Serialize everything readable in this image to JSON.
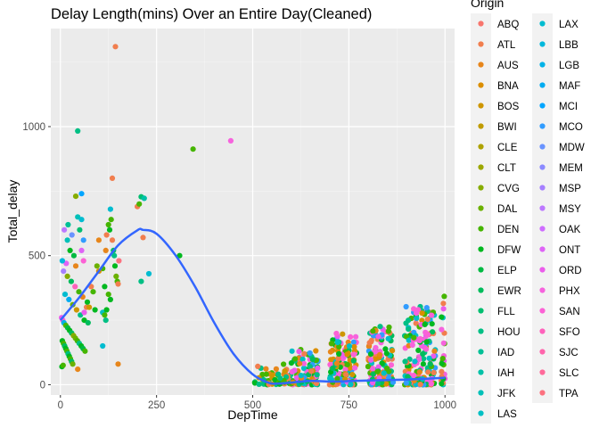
{
  "chart_data": {
    "type": "scatter",
    "title": "Delay Length(mins) Over an Entire Day(Cleaned)",
    "xlabel": "DepTime",
    "ylabel": "Total_delay",
    "xlim": [
      -25,
      1025
    ],
    "ylim": [
      -40,
      1380
    ],
    "x_ticks": [
      0,
      250,
      500,
      750,
      1000
    ],
    "x_tick_labels": [
      "0",
      "250",
      "500",
      "750",
      "1000"
    ],
    "y_ticks": [
      0,
      500,
      1000
    ],
    "y_tick_labels": [
      "0",
      "500",
      "1000"
    ],
    "x_minor_ticks": [
      125,
      375,
      625,
      875
    ],
    "y_minor_ticks": [
      250,
      750,
      1250
    ],
    "grid": true,
    "background": "#ebebeb",
    "legend": {
      "title": "Origin",
      "placement": "right",
      "columns": 2,
      "entries": [
        {
          "label": "ABQ",
          "color": "#F8766D"
        },
        {
          "label": "ATL",
          "color": "#F17E4E"
        },
        {
          "label": "AUS",
          "color": "#E7861B"
        },
        {
          "label": "BNA",
          "color": "#DB8E00"
        },
        {
          "label": "BOS",
          "color": "#CE9600"
        },
        {
          "label": "BWI",
          "color": "#C09B00"
        },
        {
          "label": "CLE",
          "color": "#AEA200"
        },
        {
          "label": "CLT",
          "color": "#9CA700"
        },
        {
          "label": "CVG",
          "color": "#86AC00"
        },
        {
          "label": "DAL",
          "color": "#6BB100"
        },
        {
          "label": "DEN",
          "color": "#45B500"
        },
        {
          "label": "DFW",
          "color": "#00B81F"
        },
        {
          "label": "ELP",
          "color": "#00BA42"
        },
        {
          "label": "EWR",
          "color": "#00BC5C"
        },
        {
          "label": "FLL",
          "color": "#00BE70"
        },
        {
          "label": "HOU",
          "color": "#00BF84"
        },
        {
          "label": "IAD",
          "color": "#00C096"
        },
        {
          "label": "IAH",
          "color": "#00C1A7"
        },
        {
          "label": "JFK",
          "color": "#00C0B8"
        },
        {
          "label": "LAS",
          "color": "#00BFC4"
        },
        {
          "label": "LAX",
          "color": "#00BCD0"
        },
        {
          "label": "LBB",
          "color": "#00B8DC"
        },
        {
          "label": "LGB",
          "color": "#00B2E7"
        },
        {
          "label": "MAF",
          "color": "#00ACF1"
        },
        {
          "label": "MCI",
          "color": "#00A5FF"
        },
        {
          "label": "MCO",
          "color": "#319CFF"
        },
        {
          "label": "MDW",
          "color": "#6993FF"
        },
        {
          "label": "MEM",
          "color": "#8B8AFF"
        },
        {
          "label": "MSP",
          "color": "#A680FF"
        },
        {
          "label": "MSY",
          "color": "#BC78FF"
        },
        {
          "label": "OAK",
          "color": "#CE6DFF"
        },
        {
          "label": "ONT",
          "color": "#DE64F6"
        },
        {
          "label": "ORD",
          "color": "#EB5CEB"
        },
        {
          "label": "PHX",
          "color": "#F663DD"
        },
        {
          "label": "SAN",
          "color": "#FC61D5"
        },
        {
          "label": "SFO",
          "color": "#FF62BC"
        },
        {
          "label": "SJC",
          "color": "#FF65AC"
        },
        {
          "label": "SLC",
          "color": "#FF6A9A"
        },
        {
          "label": "TPA",
          "color": "#FC717F"
        }
      ]
    },
    "points": [
      [
        143,
        1310,
        "ATL"
      ],
      [
        45,
        983,
        "HOU"
      ],
      [
        345,
        913,
        "DEN"
      ],
      [
        443,
        945,
        "PHX"
      ],
      [
        135,
        800,
        "ATL"
      ],
      [
        200,
        690,
        "ATL"
      ],
      [
        205,
        700,
        "DEN"
      ],
      [
        210,
        728,
        "FLL"
      ],
      [
        218,
        722,
        "IAH"
      ],
      [
        55,
        740,
        "MCI"
      ],
      [
        40,
        730,
        "CVG"
      ],
      [
        10,
        600,
        "MSY"
      ],
      [
        20,
        620,
        "IAD"
      ],
      [
        30,
        580,
        "MDW"
      ],
      [
        45,
        650,
        "JFK"
      ],
      [
        55,
        640,
        "LAX"
      ],
      [
        50,
        600,
        "FLL"
      ],
      [
        60,
        560,
        "MCO"
      ],
      [
        35,
        500,
        "ELP"
      ],
      [
        25,
        520,
        "DFW"
      ],
      [
        15,
        470,
        "ONT"
      ],
      [
        5,
        480,
        "LBB"
      ],
      [
        8,
        440,
        "MSP"
      ],
      [
        18,
        420,
        "CVG"
      ],
      [
        28,
        400,
        "EWR"
      ],
      [
        38,
        380,
        "SFO"
      ],
      [
        48,
        360,
        "DEN"
      ],
      [
        58,
        340,
        "AUS"
      ],
      [
        68,
        300,
        "ATL"
      ],
      [
        12,
        350,
        "LAX"
      ],
      [
        22,
        330,
        "MAF"
      ],
      [
        32,
        310,
        "DAL"
      ],
      [
        42,
        290,
        "BOS"
      ],
      [
        52,
        270,
        "HOU"
      ],
      [
        62,
        250,
        "DFW"
      ],
      [
        72,
        240,
        "EWR"
      ],
      [
        3,
        260,
        "ORD"
      ],
      [
        6,
        250,
        "SAN"
      ],
      [
        9,
        240,
        "LGB"
      ],
      [
        14,
        230,
        "DEN"
      ],
      [
        19,
        220,
        "ELP"
      ],
      [
        24,
        210,
        "DFW"
      ],
      [
        29,
        200,
        "EWR"
      ],
      [
        34,
        190,
        "CVG"
      ],
      [
        39,
        180,
        "DAL"
      ],
      [
        44,
        170,
        "DEN"
      ],
      [
        49,
        160,
        "HOU"
      ],
      [
        54,
        150,
        "DFW"
      ],
      [
        59,
        140,
        "ELP"
      ],
      [
        64,
        130,
        "DEN"
      ],
      [
        5,
        170,
        "DFW"
      ],
      [
        8,
        160,
        "DEN"
      ],
      [
        11,
        150,
        "EWR"
      ],
      [
        14,
        140,
        "DFW"
      ],
      [
        17,
        130,
        "DEN"
      ],
      [
        20,
        120,
        "HOU"
      ],
      [
        23,
        110,
        "DFW"
      ],
      [
        26,
        100,
        "DEN"
      ],
      [
        29,
        90,
        "EWR"
      ],
      [
        32,
        80,
        "DAL"
      ],
      [
        4,
        70,
        "DFW"
      ],
      [
        7,
        75,
        "DEN"
      ],
      [
        45,
        60,
        "AUS"
      ],
      [
        70,
        320,
        "DFW"
      ],
      [
        75,
        300,
        "BOS"
      ],
      [
        80,
        380,
        "ATL"
      ],
      [
        100,
        560,
        "AUS"
      ],
      [
        110,
        450,
        "DEN"
      ],
      [
        115,
        380,
        "DFW"
      ],
      [
        118,
        520,
        "AUS"
      ],
      [
        120,
        580,
        "ATL"
      ],
      [
        125,
        620,
        "DEN"
      ],
      [
        128,
        600,
        "DFW"
      ],
      [
        130,
        680,
        "LAX"
      ],
      [
        132,
        640,
        "DEN"
      ],
      [
        135,
        560,
        "ATL"
      ],
      [
        138,
        520,
        "EWR"
      ],
      [
        140,
        500,
        "HOU"
      ],
      [
        142,
        460,
        "DFW"
      ],
      [
        145,
        420,
        "DAL"
      ],
      [
        148,
        400,
        "DEN"
      ],
      [
        150,
        390,
        "ATL"
      ],
      [
        152,
        480,
        "TPA"
      ],
      [
        110,
        280,
        "LAS"
      ],
      [
        115,
        270,
        "DEN"
      ],
      [
        118,
        250,
        "HOU"
      ],
      [
        120,
        290,
        "DFW"
      ],
      [
        110,
        150,
        "LAX"
      ],
      [
        125,
        350,
        "DEN"
      ],
      [
        130,
        330,
        "DFW"
      ],
      [
        150,
        80,
        "AUS"
      ],
      [
        215,
        570,
        "ATL"
      ],
      [
        210,
        400,
        "HOU"
      ],
      [
        230,
        430,
        "LAX"
      ],
      [
        310,
        500,
        "DFW"
      ],
      [
        60,
        480,
        "SAN"
      ],
      [
        55,
        520,
        "ONT"
      ],
      [
        62,
        280,
        "ORD"
      ],
      [
        40,
        460,
        "AUS"
      ],
      [
        18,
        560,
        "JFK"
      ],
      [
        95,
        460,
        "DAL"
      ],
      [
        85,
        360,
        "DEN"
      ],
      [
        90,
        290,
        "DFW"
      ],
      [
        100,
        440,
        "BNA"
      ]
    ],
    "clusters": [
      {
        "x": [
          505,
          600
        ],
        "y": [
          0,
          80
        ],
        "n": 55,
        "origins": [
          "ATL",
          "AUS",
          "DEN",
          "DFW",
          "HOU",
          "BOS"
        ]
      },
      {
        "x": [
          600,
          670
        ],
        "y": [
          0,
          140
        ],
        "n": 110,
        "origins": [
          "ATL",
          "AUS",
          "DEN",
          "DFW",
          "HOU",
          "EWR",
          "LAS",
          "PHX",
          "ORD",
          "MCO",
          "SAN",
          "BNA"
        ]
      },
      {
        "x": [
          700,
          770
        ],
        "y": [
          0,
          200
        ],
        "n": 140,
        "origins": [
          "ATL",
          "AUS",
          "DEN",
          "DFW",
          "HOU",
          "EWR",
          "LAS",
          "PHX",
          "ORD",
          "MCO",
          "SAN",
          "BNA",
          "BOS"
        ]
      },
      {
        "x": [
          800,
          865
        ],
        "y": [
          0,
          230
        ],
        "n": 150,
        "origins": [
          "ATL",
          "AUS",
          "DEN",
          "DFW",
          "HOU",
          "EWR",
          "LAS",
          "PHX",
          "ORD",
          "MCO",
          "SAN",
          "BNA"
        ]
      },
      {
        "x": [
          895,
          975
        ],
        "y": [
          0,
          310
        ],
        "n": 170,
        "origins": [
          "ATL",
          "AUS",
          "DEN",
          "DFW",
          "HOU",
          "EWR",
          "LAS",
          "PHX",
          "ORD",
          "MCO",
          "SAN",
          "BNA",
          "LAX"
        ]
      },
      {
        "x": [
          990,
          1000
        ],
        "y": [
          0,
          350
        ],
        "n": 25,
        "origins": [
          "ATL",
          "DEN",
          "PHX",
          "ORD",
          "LAS",
          "DFW"
        ]
      }
    ],
    "smooth_line": {
      "color": "#3366FF",
      "points": [
        [
          0,
          250
        ],
        [
          50,
          340
        ],
        [
          100,
          440
        ],
        [
          150,
          540
        ],
        [
          200,
          598
        ],
        [
          215,
          600
        ],
        [
          250,
          585
        ],
        [
          300,
          500
        ],
        [
          350,
          380
        ],
        [
          400,
          240
        ],
        [
          450,
          120
        ],
        [
          500,
          40
        ],
        [
          540,
          8
        ],
        [
          560,
          4
        ],
        [
          600,
          8
        ],
        [
          650,
          15
        ],
        [
          700,
          12
        ],
        [
          750,
          14
        ],
        [
          800,
          16
        ],
        [
          850,
          18
        ],
        [
          900,
          20
        ],
        [
          950,
          23
        ],
        [
          1000,
          27
        ]
      ]
    }
  }
}
